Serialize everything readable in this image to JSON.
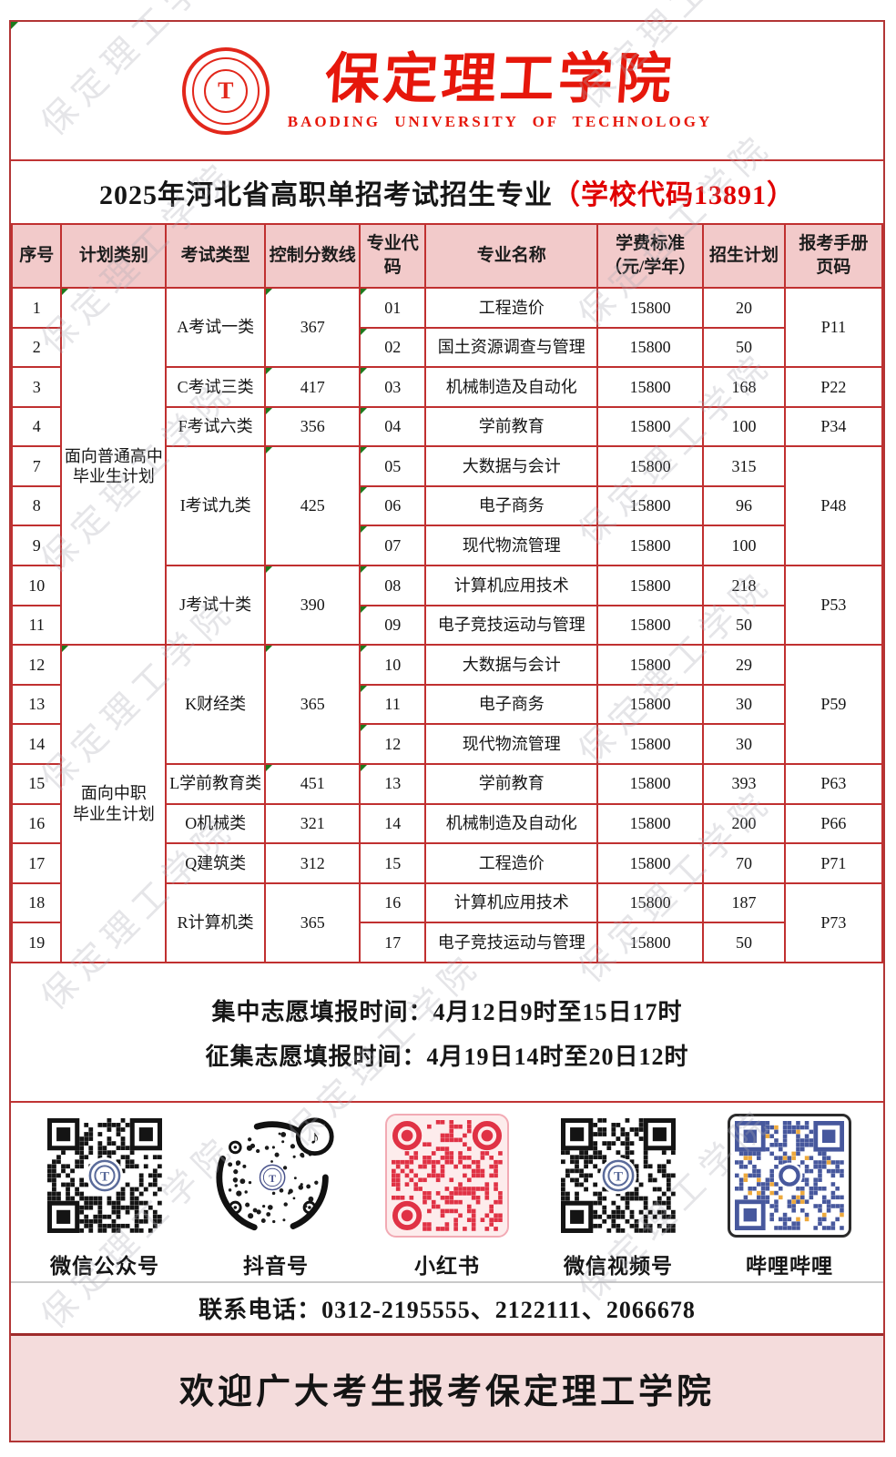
{
  "watermark": {
    "text": "保定理工学院"
  },
  "header": {
    "university_cn": "保定理工学院",
    "university_en": "BAODING UNIVERSITY OF TECHNOLOGY",
    "logo_monogram": "T"
  },
  "title": {
    "main": "2025年河北省高职单招考试招生专业",
    "code": "（学校代码13891）"
  },
  "colors": {
    "border_red": "#c03030",
    "header_bg": "#f2caca",
    "accent_red": "#e00000",
    "footer_bg": "#f4dcdc",
    "logo_red": "#e6170b"
  },
  "table": {
    "headers": [
      "序号",
      "计划类别",
      "考试类型",
      "控制分数线",
      "专业代码",
      "专业名称",
      "学费标准\n（元/学年）",
      "招生计划",
      "报考手册\n页码"
    ],
    "rows": [
      {
        "cells": [
          {
            "t": "1"
          },
          {
            "t": "面向普通高中\n毕业生计划",
            "rs": 9,
            "tri": true,
            "n": "plan-category-cell"
          },
          {
            "t": "A考试一类",
            "rs": 2,
            "n": "exam-type-cell"
          },
          {
            "t": "367",
            "rs": 2,
            "tri": true,
            "n": "score-line-cell"
          },
          {
            "t": "01",
            "tri": true,
            "n": "major-code-cell"
          },
          {
            "t": "工程造价",
            "n": "major-name-cell"
          },
          {
            "t": "15800",
            "n": "tuition-cell"
          },
          {
            "t": "20",
            "n": "plan-count-cell"
          },
          {
            "t": "P11",
            "rs": 2,
            "n": "handbook-page-cell"
          }
        ]
      },
      {
        "cells": [
          {
            "t": "2"
          },
          {
            "t": "02",
            "tri": true,
            "n": "major-code-cell"
          },
          {
            "t": "国土资源调查与管理",
            "n": "major-name-cell"
          },
          {
            "t": "15800",
            "n": "tuition-cell"
          },
          {
            "t": "50",
            "n": "plan-count-cell"
          }
        ]
      },
      {
        "cells": [
          {
            "t": "3"
          },
          {
            "t": "C考试三类",
            "n": "exam-type-cell"
          },
          {
            "t": "417",
            "tri": true,
            "n": "score-line-cell"
          },
          {
            "t": "03",
            "tri": true,
            "n": "major-code-cell"
          },
          {
            "t": "机械制造及自动化",
            "n": "major-name-cell"
          },
          {
            "t": "15800",
            "n": "tuition-cell"
          },
          {
            "t": "168",
            "n": "plan-count-cell"
          },
          {
            "t": "P22",
            "n": "handbook-page-cell"
          }
        ]
      },
      {
        "cells": [
          {
            "t": "4"
          },
          {
            "t": "F考试六类",
            "n": "exam-type-cell"
          },
          {
            "t": "356",
            "tri": true,
            "n": "score-line-cell"
          },
          {
            "t": "04",
            "tri": true,
            "n": "major-code-cell"
          },
          {
            "t": "学前教育",
            "n": "major-name-cell"
          },
          {
            "t": "15800",
            "n": "tuition-cell"
          },
          {
            "t": "100",
            "n": "plan-count-cell"
          },
          {
            "t": "P34",
            "n": "handbook-page-cell"
          }
        ]
      },
      {
        "cells": [
          {
            "t": "7"
          },
          {
            "t": "I考试九类",
            "rs": 3,
            "n": "exam-type-cell"
          },
          {
            "t": "425",
            "rs": 3,
            "tri": true,
            "n": "score-line-cell"
          },
          {
            "t": "05",
            "tri": true,
            "n": "major-code-cell"
          },
          {
            "t": "大数据与会计",
            "n": "major-name-cell"
          },
          {
            "t": "15800",
            "n": "tuition-cell"
          },
          {
            "t": "315",
            "n": "plan-count-cell"
          },
          {
            "t": "P48",
            "rs": 3,
            "n": "handbook-page-cell"
          }
        ]
      },
      {
        "cells": [
          {
            "t": "8"
          },
          {
            "t": "06",
            "tri": true,
            "n": "major-code-cell"
          },
          {
            "t": "电子商务",
            "n": "major-name-cell"
          },
          {
            "t": "15800",
            "n": "tuition-cell"
          },
          {
            "t": "96",
            "n": "plan-count-cell"
          }
        ]
      },
      {
        "cells": [
          {
            "t": "9"
          },
          {
            "t": "07",
            "tri": true,
            "n": "major-code-cell"
          },
          {
            "t": "现代物流管理",
            "n": "major-name-cell"
          },
          {
            "t": "15800",
            "n": "tuition-cell"
          },
          {
            "t": "100",
            "n": "plan-count-cell"
          }
        ]
      },
      {
        "cells": [
          {
            "t": "10"
          },
          {
            "t": "J考试十类",
            "rs": 2,
            "n": "exam-type-cell"
          },
          {
            "t": "390",
            "rs": 2,
            "tri": true,
            "n": "score-line-cell"
          },
          {
            "t": "08",
            "tri": true,
            "n": "major-code-cell"
          },
          {
            "t": "计算机应用技术",
            "n": "major-name-cell"
          },
          {
            "t": "15800",
            "n": "tuition-cell"
          },
          {
            "t": "218",
            "n": "plan-count-cell"
          },
          {
            "t": "P53",
            "rs": 2,
            "n": "handbook-page-cell"
          }
        ]
      },
      {
        "cells": [
          {
            "t": "11"
          },
          {
            "t": "09",
            "tri": true,
            "n": "major-code-cell"
          },
          {
            "t": "电子竞技运动与管理",
            "n": "major-name-cell"
          },
          {
            "t": "15800",
            "n": "tuition-cell"
          },
          {
            "t": "50",
            "n": "plan-count-cell"
          }
        ]
      },
      {
        "cells": [
          {
            "t": "12"
          },
          {
            "t": "面向中职\n毕业生计划",
            "rs": 8,
            "tri": true,
            "n": "plan-category-cell"
          },
          {
            "t": "K财经类",
            "rs": 3,
            "n": "exam-type-cell"
          },
          {
            "t": "365",
            "rs": 3,
            "tri": true,
            "n": "score-line-cell"
          },
          {
            "t": "10",
            "tri": true,
            "n": "major-code-cell"
          },
          {
            "t": "大数据与会计",
            "n": "major-name-cell"
          },
          {
            "t": "15800",
            "n": "tuition-cell"
          },
          {
            "t": "29",
            "n": "plan-count-cell"
          },
          {
            "t": "P59",
            "rs": 3,
            "n": "handbook-page-cell"
          }
        ]
      },
      {
        "cells": [
          {
            "t": "13"
          },
          {
            "t": "11",
            "tri": true,
            "n": "major-code-cell"
          },
          {
            "t": "电子商务",
            "n": "major-name-cell"
          },
          {
            "t": "15800",
            "n": "tuition-cell"
          },
          {
            "t": "30",
            "n": "plan-count-cell"
          }
        ]
      },
      {
        "cells": [
          {
            "t": "14"
          },
          {
            "t": "12",
            "tri": true,
            "n": "major-code-cell"
          },
          {
            "t": "现代物流管理",
            "n": "major-name-cell"
          },
          {
            "t": "15800",
            "n": "tuition-cell"
          },
          {
            "t": "30",
            "n": "plan-count-cell"
          }
        ]
      },
      {
        "cells": [
          {
            "t": "15"
          },
          {
            "t": "L学前教育类",
            "n": "exam-type-cell"
          },
          {
            "t": "451",
            "tri": true,
            "n": "score-line-cell"
          },
          {
            "t": "13",
            "tri": true,
            "n": "major-code-cell"
          },
          {
            "t": "学前教育",
            "n": "major-name-cell"
          },
          {
            "t": "15800",
            "n": "tuition-cell"
          },
          {
            "t": "393",
            "n": "plan-count-cell"
          },
          {
            "t": "P63",
            "n": "handbook-page-cell"
          }
        ]
      },
      {
        "cells": [
          {
            "t": "16"
          },
          {
            "t": "O机械类",
            "n": "exam-type-cell"
          },
          {
            "t": "321",
            "n": "score-line-cell"
          },
          {
            "t": "14",
            "n": "major-code-cell"
          },
          {
            "t": "机械制造及自动化",
            "n": "major-name-cell"
          },
          {
            "t": "15800",
            "n": "tuition-cell"
          },
          {
            "t": "200",
            "n": "plan-count-cell"
          },
          {
            "t": "P66",
            "n": "handbook-page-cell"
          }
        ]
      },
      {
        "cells": [
          {
            "t": "17"
          },
          {
            "t": "Q建筑类",
            "n": "exam-type-cell"
          },
          {
            "t": "312",
            "n": "score-line-cell"
          },
          {
            "t": "15",
            "n": "major-code-cell"
          },
          {
            "t": "工程造价",
            "n": "major-name-cell"
          },
          {
            "t": "15800",
            "n": "tuition-cell"
          },
          {
            "t": "70",
            "n": "plan-count-cell"
          },
          {
            "t": "P71",
            "n": "handbook-page-cell"
          }
        ]
      },
      {
        "cells": [
          {
            "t": "18"
          },
          {
            "t": "R计算机类",
            "rs": 2,
            "n": "exam-type-cell"
          },
          {
            "t": "365",
            "rs": 2,
            "n": "score-line-cell"
          },
          {
            "t": "16",
            "n": "major-code-cell"
          },
          {
            "t": "计算机应用技术",
            "n": "major-name-cell"
          },
          {
            "t": "15800",
            "n": "tuition-cell"
          },
          {
            "t": "187",
            "n": "plan-count-cell"
          },
          {
            "t": "P73",
            "rs": 2,
            "n": "handbook-page-cell"
          }
        ]
      },
      {
        "cells": [
          {
            "t": "19"
          },
          {
            "t": "17",
            "n": "major-code-cell"
          },
          {
            "t": "电子竞技运动与管理",
            "n": "major-name-cell"
          },
          {
            "t": "15800",
            "n": "tuition-cell"
          },
          {
            "t": "50",
            "n": "plan-count-cell"
          }
        ]
      }
    ]
  },
  "notice": {
    "line1": "集中志愿填报时间：4月12日9时至15日17时",
    "line2": "征集志愿填报时间：4月19日14时至20日12时"
  },
  "social": {
    "items": [
      {
        "name": "wechat-official-qr",
        "label": "微信公众号",
        "variant": "square",
        "color": "#141414",
        "seed": 11,
        "seal": true
      },
      {
        "name": "douyin-qr",
        "label": "抖音号",
        "variant": "douyin",
        "color": "#141414",
        "seed": 22
      },
      {
        "name": "xiaohongshu-qr",
        "label": "小红书",
        "variant": "round",
        "color": "#e03245",
        "seed": 33
      },
      {
        "name": "wechat-channels-qr",
        "label": "微信视频号",
        "variant": "square",
        "color": "#141414",
        "seed": 44,
        "seal": true
      },
      {
        "name": "bilibili-qr",
        "label": "哔哩哔哩",
        "variant": "bili",
        "color": "#47589d",
        "seed": 55
      }
    ]
  },
  "contact": {
    "phone_line": "联系电话：0312-2195555、2122111、2066678"
  },
  "footer": {
    "welcome": "欢迎广大考生报考保定理工学院"
  }
}
